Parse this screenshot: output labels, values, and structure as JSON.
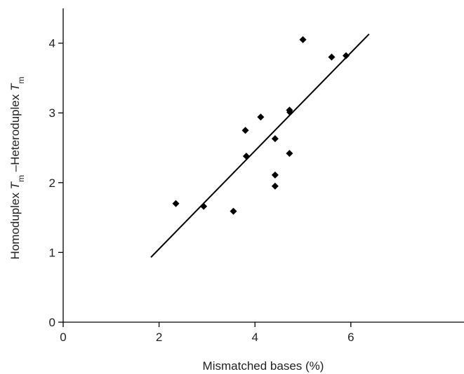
{
  "chart_data": {
    "type": "scatter",
    "title": "",
    "xlabel": "Mismatched bases (%)",
    "ylabel": {
      "parts": [
        {
          "text": "Homoduplex ",
          "italic": false,
          "sub": false
        },
        {
          "text": "T",
          "italic": true,
          "sub": false
        },
        {
          "text": "m",
          "italic": false,
          "sub": true
        },
        {
          "text": " –Heteroduplex ",
          "italic": false,
          "sub": false
        },
        {
          "text": "T",
          "italic": true,
          "sub": false
        },
        {
          "text": "m",
          "italic": false,
          "sub": true
        }
      ]
    },
    "xlim": [
      0,
      7
    ],
    "ylim": [
      0,
      4.5
    ],
    "xticks": [
      0,
      2,
      4,
      6
    ],
    "yticks": [
      0,
      1,
      2,
      3,
      4
    ],
    "grid": false,
    "marker": "diamond",
    "color": "#000000",
    "points": [
      {
        "x": 2.35,
        "y": 1.7
      },
      {
        "x": 2.93,
        "y": 1.66
      },
      {
        "x": 3.55,
        "y": 1.59
      },
      {
        "x": 3.8,
        "y": 2.75
      },
      {
        "x": 3.82,
        "y": 2.38
      },
      {
        "x": 4.12,
        "y": 2.94
      },
      {
        "x": 4.42,
        "y": 2.63
      },
      {
        "x": 4.42,
        "y": 2.11
      },
      {
        "x": 4.42,
        "y": 1.95
      },
      {
        "x": 4.72,
        "y": 3.04
      },
      {
        "x": 4.73,
        "y": 3.01
      },
      {
        "x": 4.72,
        "y": 2.42
      },
      {
        "x": 5.0,
        "y": 4.05
      },
      {
        "x": 5.6,
        "y": 3.8
      },
      {
        "x": 5.9,
        "y": 3.82
      }
    ],
    "fit_line": {
      "x": [
        1.83,
        6.38
      ],
      "y": [
        0.93,
        4.13
      ]
    }
  }
}
